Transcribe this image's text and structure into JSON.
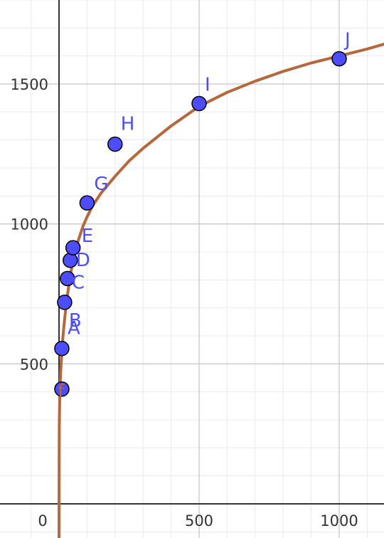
{
  "chart_data": {
    "type": "scatter",
    "title": "",
    "xlabel": "",
    "ylabel": "",
    "xlim": [
      -50,
      1170
    ],
    "ylim": [
      0,
      1790
    ],
    "grid": true,
    "x_ticks": [
      {
        "value": 0,
        "label": "0"
      },
      {
        "value": 500,
        "label": "500"
      },
      {
        "value": 1000,
        "label": "1000"
      }
    ],
    "y_ticks": [
      {
        "value": 500,
        "label": "500"
      },
      {
        "value": 1000,
        "label": "1000"
      },
      {
        "value": 1500,
        "label": "1500"
      }
    ],
    "points": [
      {
        "label": "A",
        "x": 10,
        "y": 555
      },
      {
        "label": "B",
        "x": 20,
        "y": 720
      },
      {
        "label": "C",
        "x": 30,
        "y": 805
      },
      {
        "label": "D",
        "x": 40,
        "y": 870
      },
      {
        "label": "E",
        "x": 50,
        "y": 915
      },
      {
        "label": "G",
        "x": 100,
        "y": 1075
      },
      {
        "label": "H",
        "x": 200,
        "y": 1285
      },
      {
        "label": "I",
        "x": 500,
        "y": 1430
      },
      {
        "label": "J",
        "x": 1000,
        "y": 1590
      }
    ],
    "curve_label": {
      "label": "f",
      "x": 5,
      "y": 410
    },
    "curve": {
      "x": [
        0.001,
        0.5,
        1,
        2,
        3,
        5,
        8,
        12,
        16,
        20,
        25,
        30,
        40,
        50,
        60,
        70,
        85,
        100,
        120,
        150,
        200,
        250,
        300,
        400,
        500,
        600,
        700,
        800,
        900,
        1000,
        1100,
        1170
      ],
      "y": [
        -200,
        170,
        280,
        350,
        390,
        450,
        510,
        570,
        620,
        660,
        705,
        745,
        815,
        870,
        910,
        945,
        990,
        1025,
        1065,
        1110,
        1170,
        1225,
        1270,
        1350,
        1420,
        1470,
        1510,
        1545,
        1575,
        1600,
        1625,
        1645
      ]
    },
    "colors": {
      "curve": "#b5683c",
      "point_fill": "#4d4dff",
      "point_stroke": "#000000",
      "point_label": "#4d4dff",
      "curve_label": "#b5683c",
      "grid_major": "#c8c8c8",
      "grid_minor": "#ebebeb",
      "axis": "#333333"
    }
  }
}
